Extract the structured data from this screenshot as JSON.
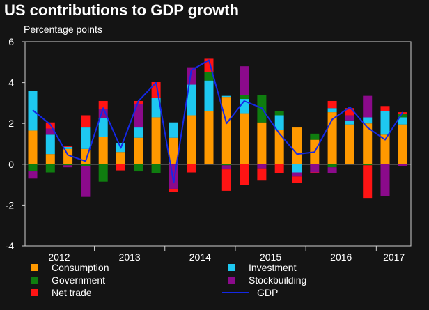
{
  "chart_data": {
    "type": "bar",
    "stacked": true,
    "title": "US contributions to GDP growth",
    "subtitle": "Percentage points",
    "ylim": [
      -4,
      6
    ],
    "yticks": [
      -4,
      -2,
      0,
      2,
      4,
      6
    ],
    "year_labels": [
      "2012",
      "2013",
      "2014",
      "2015",
      "2016",
      "2017"
    ],
    "categories": [
      "2012 Q1",
      "2012 Q2",
      "2012 Q3",
      "2012 Q4",
      "2013 Q1",
      "2013 Q2",
      "2013 Q3",
      "2013 Q4",
      "2014 Q1",
      "2014 Q2",
      "2014 Q3",
      "2014 Q4",
      "2015 Q1",
      "2015 Q2",
      "2015 Q3",
      "2015 Q4",
      "2016 Q1",
      "2016 Q2",
      "2016 Q3",
      "2016 Q4",
      "2017 Q1",
      "2017 Q2"
    ],
    "series": [
      {
        "name": "Consumption",
        "color": "#FF9900",
        "values": [
          1.65,
          0.5,
          0.75,
          0.75,
          1.35,
          0.6,
          1.3,
          2.3,
          1.3,
          2.4,
          2.6,
          3.3,
          2.5,
          2.05,
          1.7,
          1.8,
          1.2,
          2.55,
          1.95,
          2.0,
          1.45,
          1.95
        ]
      },
      {
        "name": "Investment",
        "color": "#1EC8F0",
        "values": [
          1.95,
          0.95,
          0.1,
          1.05,
          0.9,
          0.45,
          0.5,
          0.95,
          0.75,
          1.5,
          1.5,
          0.05,
          0.7,
          0.0,
          0.7,
          -0.4,
          0.0,
          0.2,
          0.2,
          0.3,
          1.15,
          0.35
        ]
      },
      {
        "name": "Government",
        "color": "#0F7D0F",
        "values": [
          -0.35,
          -0.4,
          -0.05,
          -0.1,
          -0.85,
          0.0,
          -0.35,
          -0.45,
          0.0,
          0.0,
          0.4,
          -0.05,
          0.2,
          1.35,
          0.2,
          0.0,
          0.3,
          -0.15,
          0.0,
          -0.05,
          0.0,
          0.15
        ]
      },
      {
        "name": "Stockbuilding",
        "color": "#8B0A8B",
        "values": [
          -0.35,
          0.3,
          -0.1,
          -1.5,
          0.45,
          0.0,
          1.15,
          0.0,
          -1.2,
          0.85,
          0.0,
          -0.2,
          1.4,
          -0.2,
          0.0,
          -0.2,
          -0.4,
          -0.3,
          0.25,
          1.05,
          -1.55,
          -0.1
        ]
      },
      {
        "name": "Net trade",
        "color": "#FF1414",
        "values": [
          0.0,
          0.3,
          0.05,
          0.6,
          0.4,
          -0.3,
          0.15,
          0.8,
          -0.15,
          -0.4,
          0.7,
          -1.05,
          -1.0,
          -0.6,
          -0.45,
          -0.3,
          -0.05,
          0.35,
          0.35,
          -1.6,
          0.25,
          0.1
        ]
      }
    ],
    "line_series": {
      "name": "GDP",
      "color": "#1428E6",
      "values": [
        2.65,
        1.95,
        0.45,
        0.15,
        2.75,
        0.8,
        3.1,
        4.0,
        -0.9,
        4.6,
        5.1,
        2.0,
        3.1,
        2.75,
        1.5,
        0.5,
        0.6,
        2.2,
        2.8,
        1.8,
        1.2,
        2.55
      ]
    },
    "legend": [
      {
        "name": "Consumption",
        "kind": "swatch",
        "color": "#FF9900"
      },
      {
        "name": "Government",
        "kind": "swatch",
        "color": "#0F7D0F"
      },
      {
        "name": "Net trade",
        "kind": "swatch",
        "color": "#FF1414"
      },
      {
        "name": "Investment",
        "kind": "swatch",
        "color": "#1EC8F0"
      },
      {
        "name": "Stockbuilding",
        "kind": "swatch",
        "color": "#8B0A8B"
      },
      {
        "name": "GDP",
        "kind": "line",
        "color": "#1428E6"
      }
    ],
    "legend_placement": "bottom",
    "grid": false
  }
}
